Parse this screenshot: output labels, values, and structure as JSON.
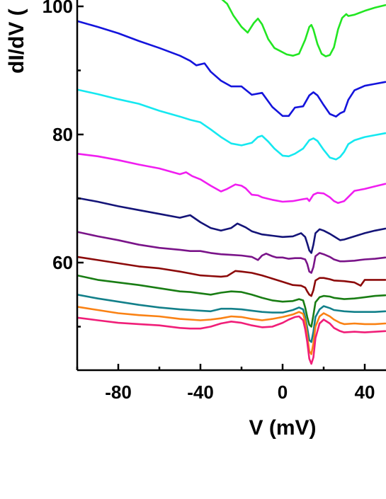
{
  "chart_data": {
    "type": "line",
    "xlabel": "V (mV)",
    "ylabel": "dI/dV (",
    "xlim": [
      -100,
      50
    ],
    "ylim": [
      43.5,
      101
    ],
    "xticks": [
      -80,
      -40,
      0,
      40
    ],
    "yticks": [
      60,
      80,
      100
    ],
    "grid": false,
    "series": [
      {
        "color": "#22e622",
        "x": [
          -31,
          -27,
          -24,
          -20,
          -17,
          -14,
          -12,
          -10,
          -7,
          -4,
          -1,
          2,
          5,
          8,
          11,
          13,
          14,
          15,
          17,
          19,
          21,
          23,
          25,
          27,
          29,
          31,
          32,
          35,
          40,
          45,
          50
        ],
        "y": [
          101.5,
          100.4,
          98.6,
          96.8,
          95.9,
          97.4,
          98.1,
          97.2,
          94.9,
          93.5,
          93.0,
          92.5,
          92.3,
          92.6,
          94.8,
          96.8,
          97.1,
          96.4,
          94.1,
          92.6,
          92.2,
          92.4,
          93.6,
          96.4,
          98.2,
          98.8,
          98.5,
          98.7,
          99.3,
          99.8,
          100.2
        ]
      },
      {
        "color": "#1414dc",
        "x": [
          -100,
          -90,
          -80,
          -70,
          -60,
          -50,
          -45,
          -42,
          -38,
          -35,
          -30,
          -25,
          -20,
          -15,
          -10,
          -5,
          0,
          3,
          6,
          10,
          13,
          15,
          17,
          20,
          23,
          26,
          28,
          30,
          32,
          35,
          40,
          45,
          50
        ],
        "y": [
          97.7,
          96.8,
          95.8,
          94.6,
          93.5,
          92.3,
          91.5,
          90.8,
          91.1,
          89.8,
          88.4,
          87.5,
          87.5,
          86.2,
          86.5,
          84.3,
          82.9,
          82.9,
          84.2,
          84.4,
          86.1,
          86.6,
          86.1,
          84.6,
          83.2,
          82.8,
          83.3,
          83.6,
          85.4,
          86.9,
          87.6,
          87.9,
          88.2
        ]
      },
      {
        "color": "#15e8f0",
        "x": [
          -100,
          -90,
          -80,
          -70,
          -60,
          -50,
          -45,
          -40,
          -35,
          -30,
          -25,
          -20,
          -15,
          -12,
          -10,
          -7,
          -4,
          0,
          3,
          6,
          10,
          13,
          15,
          17,
          20,
          23,
          26,
          28,
          30,
          32,
          35,
          40,
          45,
          50
        ],
        "y": [
          87.0,
          86.3,
          85.5,
          84.8,
          83.7,
          82.8,
          82.3,
          81.9,
          80.8,
          79.6,
          78.6,
          78.3,
          78.7,
          79.6,
          79.8,
          78.9,
          77.8,
          76.7,
          76.6,
          77.0,
          77.8,
          79.1,
          79.4,
          79.0,
          77.6,
          76.4,
          76.1,
          76.5,
          77.3,
          78.5,
          79.1,
          79.6,
          79.9,
          80.2
        ]
      },
      {
        "color": "#f01ef0",
        "x": [
          -100,
          -90,
          -80,
          -70,
          -60,
          -50,
          -47,
          -44,
          -40,
          -35,
          -30,
          -27,
          -23,
          -20,
          -18,
          -15,
          -12,
          -10,
          -5,
          0,
          5,
          10,
          12,
          13,
          15,
          17,
          20,
          23,
          25,
          27,
          30,
          35,
          40,
          45,
          50
        ],
        "y": [
          77.0,
          76.6,
          76.0,
          75.3,
          74.7,
          73.8,
          74.1,
          73.5,
          73.0,
          72.0,
          71.1,
          71.5,
          72.2,
          72.0,
          71.6,
          70.6,
          70.5,
          70.2,
          69.8,
          69.5,
          69.6,
          69.9,
          70.0,
          69.6,
          70.6,
          70.9,
          70.8,
          70.2,
          69.6,
          69.3,
          69.6,
          71.2,
          71.5,
          71.9,
          72.3
        ]
      },
      {
        "color": "#141478",
        "x": [
          -100,
          -90,
          -80,
          -70,
          -60,
          -50,
          -45,
          -40,
          -35,
          -30,
          -25,
          -22,
          -18,
          -15,
          -10,
          -5,
          0,
          5,
          9,
          11,
          12,
          13,
          14,
          15,
          16,
          18,
          20,
          23,
          25,
          28,
          30,
          35,
          40,
          45,
          50
        ],
        "y": [
          70.1,
          69.5,
          68.8,
          68.2,
          67.6,
          67.0,
          67.4,
          66.3,
          65.4,
          65.0,
          65.4,
          66.1,
          65.5,
          64.9,
          64.4,
          64.2,
          64.0,
          64.1,
          64.6,
          64.0,
          63.0,
          61.9,
          61.5,
          62.8,
          64.6,
          65.2,
          65.0,
          64.5,
          64.1,
          63.5,
          63.6,
          64.1,
          64.6,
          65.0,
          65.3
        ]
      },
      {
        "color": "#7a1489",
        "x": [
          -100,
          -90,
          -80,
          -70,
          -60,
          -50,
          -45,
          -40,
          -35,
          -30,
          -25,
          -20,
          -15,
          -12,
          -10,
          -8,
          -5,
          -3,
          0,
          3,
          6,
          9,
          11,
          12,
          13,
          14,
          15,
          16,
          18,
          20,
          23,
          25,
          28,
          30,
          35,
          40,
          45,
          50
        ],
        "y": [
          64.8,
          64.1,
          63.5,
          62.8,
          62.3,
          62.0,
          61.8,
          61.8,
          61.5,
          61.3,
          61.2,
          61.1,
          60.9,
          60.4,
          61.1,
          61.4,
          61.0,
          60.8,
          60.8,
          60.6,
          60.7,
          60.7,
          60.5,
          59.8,
          58.6,
          58.4,
          59.3,
          61.0,
          61.5,
          61.3,
          60.9,
          60.5,
          60.2,
          60.2,
          60.3,
          60.5,
          60.6,
          60.8
        ]
      },
      {
        "color": "#8c0a0a",
        "x": [
          -100,
          -90,
          -80,
          -70,
          -60,
          -50,
          -45,
          -40,
          -35,
          -30,
          -27,
          -23,
          -20,
          -15,
          -10,
          -5,
          0,
          5,
          9,
          11,
          12,
          13,
          14,
          15,
          16,
          18,
          20,
          23,
          25,
          30,
          35,
          38,
          40,
          45,
          50
        ],
        "y": [
          60.9,
          60.4,
          59.9,
          59.4,
          59.1,
          58.6,
          58.3,
          58.0,
          57.9,
          57.8,
          57.9,
          58.7,
          58.6,
          58.4,
          58.0,
          57.5,
          57.0,
          56.5,
          56.4,
          56.1,
          55.5,
          55.0,
          54.8,
          55.7,
          57.2,
          57.6,
          57.6,
          57.4,
          57.2,
          57.1,
          56.9,
          56.4,
          57.3,
          57.3,
          57.3
        ]
      },
      {
        "color": "#197d14",
        "x": [
          -100,
          -90,
          -80,
          -70,
          -60,
          -50,
          -45,
          -40,
          -35,
          -30,
          -25,
          -20,
          -15,
          -10,
          -5,
          0,
          5,
          8,
          10,
          11,
          12,
          13,
          14,
          15,
          16,
          18,
          20,
          23,
          25,
          30,
          35,
          40,
          45,
          50
        ],
        "y": [
          58.0,
          57.3,
          56.9,
          56.5,
          56.0,
          55.5,
          55.4,
          55.2,
          55.0,
          55.3,
          55.5,
          55.4,
          55.0,
          54.5,
          54.1,
          53.9,
          54.0,
          54.3,
          54.1,
          53.0,
          51.5,
          50.3,
          50.0,
          51.8,
          53.8,
          54.6,
          54.8,
          54.7,
          54.5,
          54.3,
          54.4,
          54.6,
          54.8,
          54.9
        ]
      },
      {
        "color": "#13808a",
        "x": [
          -100,
          -90,
          -80,
          -70,
          -60,
          -50,
          -45,
          -40,
          -35,
          -30,
          -25,
          -20,
          -15,
          -10,
          -5,
          0,
          5,
          8,
          10,
          11,
          12,
          13,
          14,
          15,
          16,
          18,
          20,
          23,
          25,
          30,
          35,
          40,
          45,
          50
        ],
        "y": [
          55.0,
          54.4,
          53.9,
          53.4,
          53.0,
          52.7,
          52.6,
          52.5,
          52.4,
          52.8,
          52.8,
          52.7,
          52.5,
          52.3,
          52.2,
          52.2,
          52.6,
          53.0,
          52.7,
          51.5,
          49.8,
          47.9,
          47.6,
          49.2,
          51.5,
          52.7,
          53.2,
          52.9,
          52.6,
          52.4,
          52.3,
          52.3,
          52.3,
          52.4
        ]
      },
      {
        "color": "#fa8214",
        "x": [
          -100,
          -90,
          -80,
          -70,
          -60,
          -50,
          -45,
          -40,
          -35,
          -30,
          -25,
          -20,
          -15,
          -10,
          -5,
          0,
          5,
          8,
          10,
          11,
          12,
          13,
          14,
          15,
          16,
          18,
          20,
          23,
          25,
          28,
          30,
          35,
          40,
          45,
          50
        ],
        "y": [
          53.1,
          52.6,
          52.1,
          51.8,
          51.6,
          51.2,
          51.1,
          51.0,
          51.1,
          51.3,
          51.6,
          51.5,
          51.2,
          51.0,
          51.2,
          51.5,
          51.9,
          52.3,
          52.0,
          50.8,
          48.6,
          46.2,
          45.7,
          47.4,
          50.0,
          51.6,
          52.1,
          51.6,
          51.1,
          50.6,
          50.4,
          50.5,
          50.4,
          50.4,
          50.5
        ]
      },
      {
        "color": "#f01e78",
        "x": [
          -100,
          -90,
          -80,
          -70,
          -60,
          -50,
          -45,
          -40,
          -35,
          -30,
          -25,
          -20,
          -15,
          -10,
          -5,
          0,
          3,
          6,
          8,
          10,
          11,
          12,
          13,
          14,
          15,
          16,
          18,
          20,
          23,
          25,
          28,
          30,
          35,
          40,
          45,
          50
        ],
        "y": [
          51.4,
          51.0,
          50.6,
          50.4,
          50.2,
          49.8,
          49.7,
          49.7,
          50.0,
          50.5,
          50.8,
          50.6,
          50.2,
          49.9,
          50.0,
          50.6,
          51.1,
          51.5,
          51.6,
          51.0,
          49.6,
          47.6,
          45.0,
          44.2,
          45.2,
          48.2,
          50.5,
          51.1,
          50.5,
          49.8,
          49.3,
          49.1,
          49.2,
          49.1,
          49.2,
          49.3
        ]
      }
    ]
  }
}
